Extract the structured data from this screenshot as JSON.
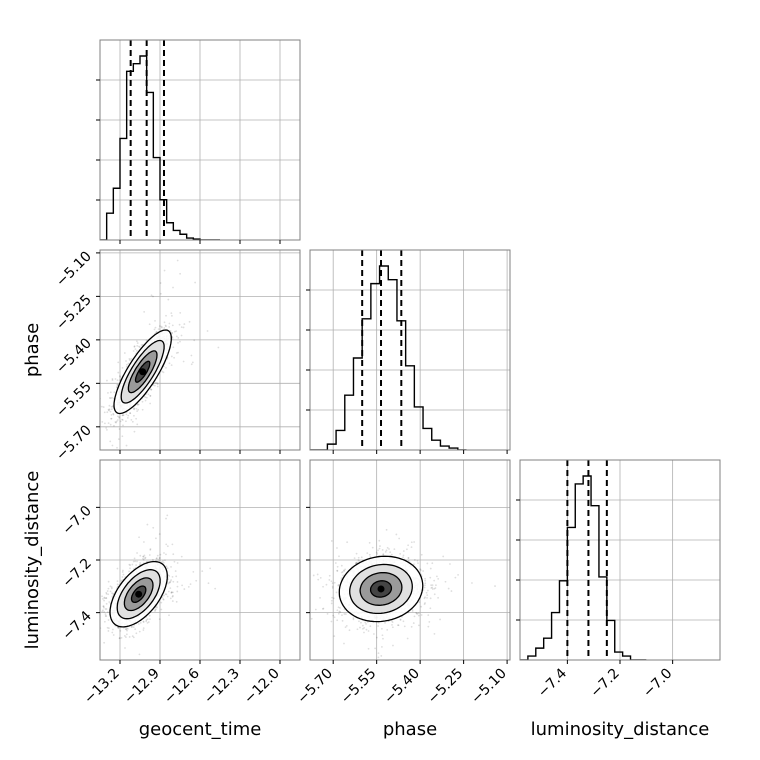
{
  "chart_data": {
    "type": "corner",
    "parameters": [
      "geocent_time",
      "phase",
      "luminosity_distance"
    ],
    "grid": true,
    "ranges": {
      "geocent_time": [
        -13.35,
        -11.85
      ],
      "phase": [
        -5.78,
        -5.09
      ],
      "luminosity_distance": [
        -7.58,
        -6.82
      ]
    },
    "ticks": {
      "geocent_time": [
        -13.2,
        -12.9,
        -12.6,
        -12.3,
        -12.0
      ],
      "phase": [
        -5.7,
        -5.55,
        -5.4,
        -5.25,
        -5.1
      ],
      "luminosity_distance": [
        -7.4,
        -7.2,
        -7.0
      ]
    },
    "tick_labels": {
      "geocent_time": [
        "−13.2",
        "−12.9",
        "−12.6",
        "−12.3",
        "−12.0"
      ],
      "phase": [
        "−5.70",
        "−5.55",
        "−5.40",
        "−5.25",
        "−5.10"
      ],
      "luminosity_distance": [
        "−7.4",
        "−7.2",
        "−7.0"
      ]
    },
    "quantiles": {
      "geocent_time": [
        -13.12,
        -13.0,
        -12.87
      ],
      "phase": [
        -5.6,
        -5.535,
        -5.465
      ],
      "luminosity_distance": [
        -7.4,
        -7.32,
        -7.25
      ]
    },
    "histograms": {
      "geocent_time": {
        "edges": [
          -13.35,
          -13.3,
          -13.25,
          -13.2,
          -13.15,
          -13.1,
          -13.05,
          -13.0,
          -12.95,
          -12.9,
          -12.85,
          -12.8,
          -12.75,
          -12.7,
          -12.65,
          -12.6,
          -12.55,
          -12.5,
          -12.45
        ],
        "counts": [
          0.0,
          0.14,
          0.27,
          0.53,
          0.88,
          0.92,
          0.96,
          0.77,
          0.43,
          0.21,
          0.09,
          0.05,
          0.03,
          0.01,
          0.005,
          0.0,
          0.0,
          0.0
        ]
      },
      "phase": {
        "edges": [
          -5.78,
          -5.75,
          -5.72,
          -5.69,
          -5.66,
          -5.63,
          -5.6,
          -5.57,
          -5.54,
          -5.51,
          -5.48,
          -5.45,
          -5.42,
          -5.39,
          -5.36,
          -5.33,
          -5.3,
          -5.27,
          -5.24
        ],
        "counts": [
          0.0,
          0.0,
          0.03,
          0.1,
          0.28,
          0.47,
          0.67,
          0.85,
          0.94,
          0.87,
          0.66,
          0.43,
          0.22,
          0.11,
          0.05,
          0.02,
          0.01,
          0.0
        ]
      },
      "luminosity_distance": {
        "edges": [
          -7.58,
          -7.55,
          -7.52,
          -7.49,
          -7.46,
          -7.43,
          -7.4,
          -7.37,
          -7.34,
          -7.31,
          -7.28,
          -7.25,
          -7.22,
          -7.19,
          -7.16,
          -7.13,
          -7.1
        ],
        "counts": [
          0.0,
          0.02,
          0.06,
          0.11,
          0.24,
          0.4,
          0.67,
          0.89,
          0.93,
          0.78,
          0.42,
          0.2,
          0.04,
          0.02,
          0.0,
          0.0
        ]
      }
    },
    "correlations": {
      "phase|geocent_time": 0.8,
      "luminosity_distance|geocent_time": 0.55,
      "luminosity_distance|phase": 0.1
    },
    "modes_2d": {
      "phase|geocent_time": [
        -13.03,
        -5.51
      ],
      "luminosity_distance|geocent_time": [
        -13.06,
        -7.33
      ],
      "luminosity_distance|phase": [
        -5.535,
        -7.31
      ]
    },
    "contour_levels_sigma": [
      0.5,
      1.0,
      1.5,
      2.0
    ],
    "colors": {
      "line": "#000000",
      "grid": "#b0b0b0",
      "frame": "#808080",
      "points": "#000000"
    }
  }
}
